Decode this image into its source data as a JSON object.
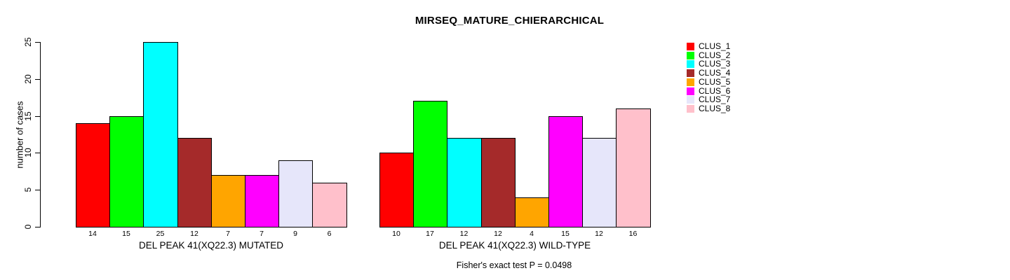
{
  "chart_data": {
    "type": "bar",
    "title": "MIRSEQ_MATURE_CHIERARCHICAL",
    "ylabel": "number of cases",
    "xlabel": "",
    "ylim": [
      0,
      25
    ],
    "yticks": [
      0,
      5,
      10,
      15,
      20,
      25
    ],
    "grid": false,
    "legend_position": "top-right",
    "legend": [
      {
        "label": "CLUS_1",
        "color": "#FF0000"
      },
      {
        "label": "CLUS_2",
        "color": "#00FF00"
      },
      {
        "label": "CLUS_3",
        "color": "#00FFFF"
      },
      {
        "label": "CLUS_4",
        "color": "#A52A2A"
      },
      {
        "label": "CLUS_5",
        "color": "#FFA500"
      },
      {
        "label": "CLUS_6",
        "color": "#FF00FF"
      },
      {
        "label": "CLUS_7",
        "color": "#E6E6FA"
      },
      {
        "label": "CLUS_8",
        "color": "#FFC0CB"
      }
    ],
    "series": [
      {
        "name": "DEL PEAK 41(XQ22.3) MUTATED",
        "values": [
          14,
          15,
          25,
          12,
          7,
          7,
          9,
          6
        ]
      },
      {
        "name": "DEL PEAK 41(XQ22.3) WILD-TYPE",
        "values": [
          10,
          17,
          12,
          12,
          4,
          15,
          12,
          16
        ]
      }
    ],
    "bar_value_labels_shown": true,
    "annotation": "Fisher's exact test P = 0.0498",
    "colors": {
      "bar_border": "#000000",
      "text": "#000000",
      "background": "#FFFFFF"
    }
  }
}
